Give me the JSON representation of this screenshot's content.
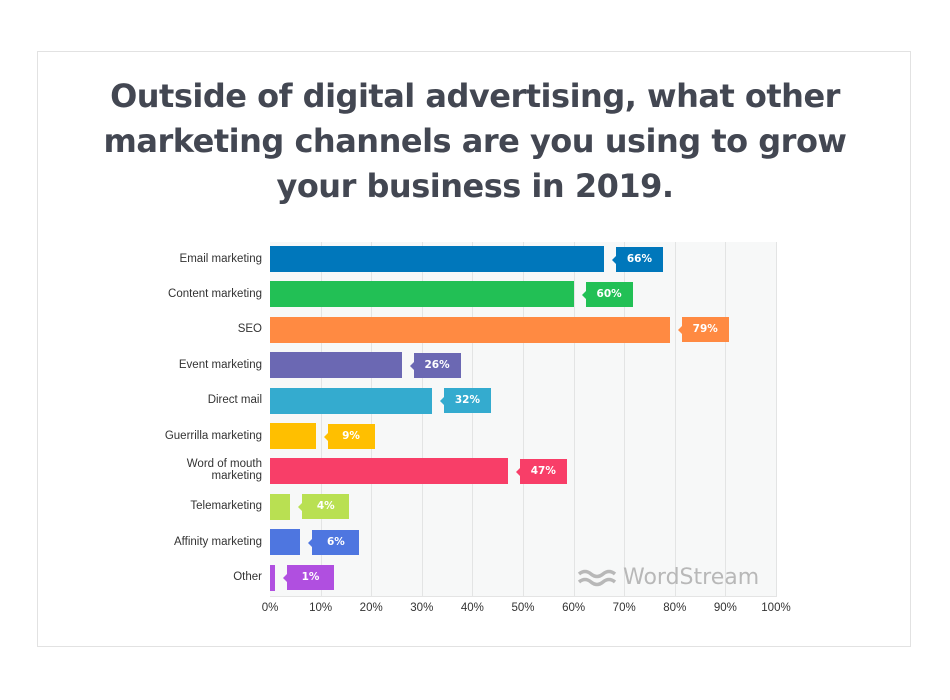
{
  "chart_data": {
    "type": "bar",
    "orientation": "horizontal",
    "title": "Outside of digital advertising, what other marketing channels are you using to grow your business in 2019.",
    "categories": [
      "Email marketing",
      "Content marketing",
      "SEO",
      "Event marketing",
      "Direct mail",
      "Guerrilla marketing",
      "Word of mouth marketing",
      "Telemarketing",
      "Affinity marketing",
      "Other"
    ],
    "values": [
      66,
      60,
      79,
      26,
      32,
      9,
      47,
      4,
      6,
      1
    ],
    "value_labels": [
      "66%",
      "60%",
      "79%",
      "26%",
      "32%",
      "9%",
      "47%",
      "4%",
      "6%",
      "1%"
    ],
    "colors": [
      "#0077bb",
      "#22c055",
      "#ff8a42",
      "#6b68b3",
      "#34abcf",
      "#ffbf00",
      "#f83e68",
      "#b9e052",
      "#4e76e0",
      "#b04fe0"
    ],
    "xlabel": "",
    "ylabel": "",
    "xlim": [
      0,
      100
    ],
    "x_ticks": [
      "0%",
      "10%",
      "20%",
      "30%",
      "40%",
      "50%",
      "60%",
      "70%",
      "80%",
      "90%",
      "100%"
    ],
    "grid": true,
    "legend": "none",
    "watermark": "WordStream"
  },
  "title_lines": [
    "Outside of digital advertising, what other",
    "marketing channels are you using to grow",
    "your business in 2019."
  ],
  "rows": [
    {
      "label_lines": [
        "Email marketing"
      ],
      "value": 66,
      "pct": "66%",
      "color": "#0077bb"
    },
    {
      "label_lines": [
        "Content marketing"
      ],
      "value": 60,
      "pct": "60%",
      "color": "#22c055"
    },
    {
      "label_lines": [
        "SEO"
      ],
      "value": 79,
      "pct": "79%",
      "color": "#ff8a42"
    },
    {
      "label_lines": [
        "Event marketing"
      ],
      "value": 26,
      "pct": "26%",
      "color": "#6b68b3"
    },
    {
      "label_lines": [
        "Direct mail"
      ],
      "value": 32,
      "pct": "32%",
      "color": "#34abcf"
    },
    {
      "label_lines": [
        "Guerrilla marketing"
      ],
      "value": 9,
      "pct": "9%",
      "color": "#ffbf00"
    },
    {
      "label_lines": [
        "Word of mouth",
        "marketing"
      ],
      "value": 47,
      "pct": "47%",
      "color": "#f83e68"
    },
    {
      "label_lines": [
        "Telemarketing"
      ],
      "value": 4,
      "pct": "4%",
      "color": "#b9e052"
    },
    {
      "label_lines": [
        "Affinity marketing"
      ],
      "value": 6,
      "pct": "6%",
      "color": "#4e76e0"
    },
    {
      "label_lines": [
        "Other"
      ],
      "value": 1,
      "pct": "1%",
      "color": "#b04fe0"
    }
  ],
  "ticks": [
    "0%",
    "10%",
    "20%",
    "30%",
    "40%",
    "50%",
    "60%",
    "70%",
    "80%",
    "90%",
    "100%"
  ],
  "brand": {
    "name": "WordStream"
  }
}
